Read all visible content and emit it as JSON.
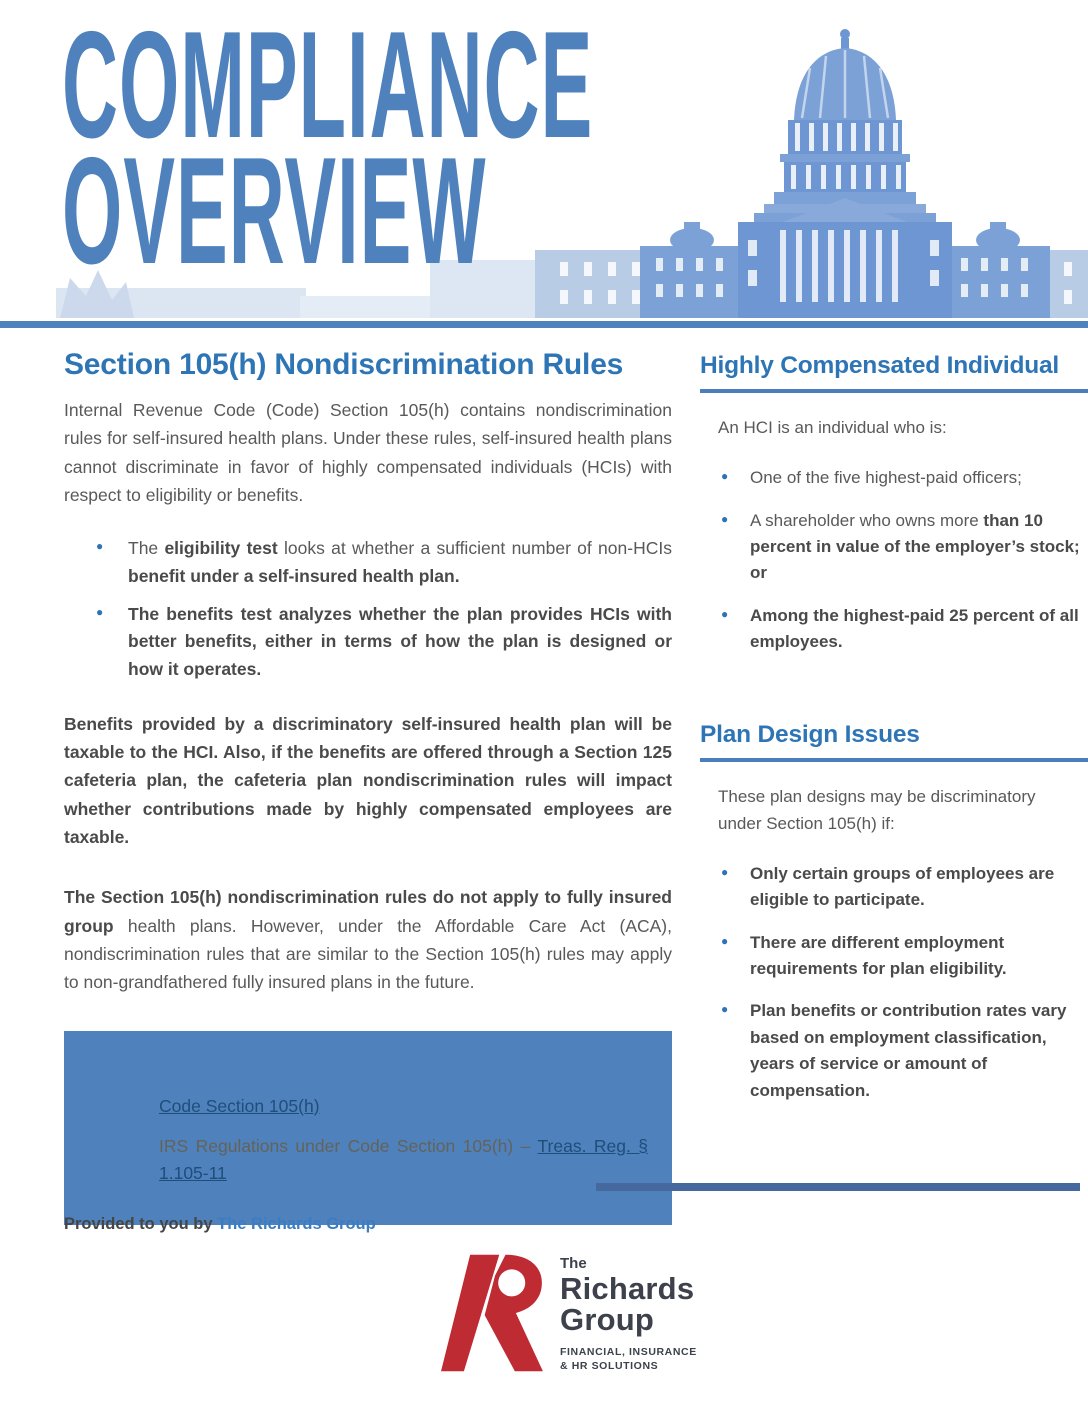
{
  "header": {
    "title_line1": "COMPLIANCE",
    "title_line2": "OVERVIEW",
    "illustration": "capitol-building"
  },
  "colors": {
    "steel_blue": "#4f81bd",
    "heading_blue": "#2e75b6",
    "body_gray": "#595959",
    "box_blue": "#4f81bd",
    "link_navy": "#1f4e79",
    "logo_red": "#bf2b33",
    "logo_charcoal": "#3c414b"
  },
  "left": {
    "heading": "Section 105(h) Nondiscrimination Rules",
    "intro": "Internal Revenue Code (Code) Section 105(h) contains nondiscrimination rules for self-insured health plans. Under these rules, self-insured health plans cannot discriminate in favor of highly compensated individuals (HCIs) with respect to eligibility or benefits.",
    "bullets": [
      {
        "segments": [
          {
            "t": "The ",
            "b": false
          },
          {
            "t": "eligibility test",
            "b": true
          },
          {
            "t": " looks at whether a sufficient number of non-HCIs ",
            "b": false
          },
          {
            "t": "benefit under a self-insured health plan.",
            "b": true
          }
        ]
      },
      {
        "segments": [
          {
            "t": "The ",
            "b": true
          },
          {
            "t": "benefits test",
            "b": true
          },
          {
            "t": " analyzes whether the plan provides HCIs with better benefits, either in terms of how the plan is designed or how it operates.",
            "b": true
          }
        ]
      }
    ],
    "para2": {
      "segments": [
        {
          "t": "Benefits provided by a discriminatory self-insured health plan will be taxable to the HCI. Also, if the benefits are offered through a Section 125 cafeteria plan, the cafeteria plan nondiscrimination rules will impact whether contributions made by highly compensated employees are taxable.",
          "b": true
        }
      ]
    },
    "para3": {
      "segments": [
        {
          "t": "The Section 105(h) nondiscrimination rules do not apply to fully insured group",
          "b": true
        },
        {
          "t": " health plans. However, under the Affordable Care Act (ACA), nondiscrimination rules that are similar to the Section 105(h) rules may apply to non-grandfathered fully insured plans in the future.",
          "b": false
        }
      ]
    },
    "links_box": {
      "link1": "Code Section 105(h)",
      "line2_plain": "IRS Regulations under Code Section 105(h) – ",
      "link2": "Treas. Reg. § 1.105-11"
    }
  },
  "right": {
    "section1": {
      "heading": "Highly Compensated Individual",
      "intro": "An HCI is an individual who is:",
      "bullets": [
        {
          "segments": [
            {
              "t": "One of the five highest-paid officers;",
              "b": false
            }
          ]
        },
        {
          "segments": [
            {
              "t": "A shareholder who owns more ",
              "b": false
            },
            {
              "t": "than 10 percent in value of the employer’s stock; or",
              "b": true
            }
          ]
        },
        {
          "segments": [
            {
              "t": "Among the highest-paid 25 percent of all employees.",
              "b": true
            }
          ]
        }
      ]
    },
    "section2": {
      "heading": "Plan Design Issues",
      "intro": "These plan designs may be discriminatory under Section 105(h) if:",
      "bullets": [
        {
          "segments": [
            {
              "t": "Only certain groups of employees are eligible to participate.",
              "b": true
            }
          ]
        },
        {
          "segments": [
            {
              "t": "There are different employment requirements for plan eligibility.",
              "b": true
            }
          ]
        },
        {
          "segments": [
            {
              "t": "Plan benefits or contribution rates vary based on employment classification, years of service or amount of compensation.",
              "b": true
            }
          ]
        }
      ]
    }
  },
  "footer": {
    "provided_prefix": "Provided to you by ",
    "provider": "The Richards Group",
    "logo": {
      "the": "The",
      "name_line1": "Richards",
      "name_line2": "Group",
      "tagline_line1": "FINANCIAL, INSURANCE",
      "tagline_line2": "& HR SOLUTIONS"
    }
  }
}
